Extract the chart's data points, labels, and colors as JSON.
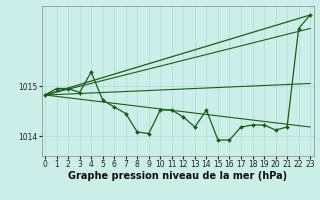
{
  "bg_color": "#cceee8",
  "grid_color": "#aaddcc",
  "line_color": "#1a5c1a",
  "xlabel": "Graphe pression niveau de la mer (hPa)",
  "xlabel_fontsize": 7,
  "ylim": [
    1013.6,
    1016.6
  ],
  "xlim": [
    -0.3,
    23.3
  ],
  "yticks": [
    1014,
    1015
  ],
  "xticks": [
    0,
    1,
    2,
    3,
    4,
    5,
    6,
    7,
    8,
    9,
    10,
    11,
    12,
    13,
    14,
    15,
    16,
    17,
    18,
    19,
    20,
    21,
    22,
    23
  ],
  "tick_fontsize": 5.5,
  "series_main": {
    "x": [
      0,
      1,
      2,
      3,
      4,
      5,
      6,
      7,
      8,
      9,
      10,
      11,
      12,
      13,
      14,
      15,
      16,
      17,
      18,
      19,
      20,
      21,
      22,
      23
    ],
    "y": [
      1014.82,
      1014.95,
      1014.95,
      1014.87,
      1015.28,
      1014.72,
      1014.58,
      1014.45,
      1014.08,
      1014.05,
      1014.52,
      1014.52,
      1014.38,
      1014.18,
      1014.52,
      1013.92,
      1013.92,
      1014.18,
      1014.22,
      1014.22,
      1014.12,
      1014.18,
      1016.15,
      1016.42
    ],
    "marker": "D",
    "markersize": 2.0,
    "linewidth": 0.9
  },
  "envelope_lines": [
    {
      "x": [
        0,
        23
      ],
      "y": [
        1014.82,
        1016.42
      ],
      "linewidth": 0.9
    },
    {
      "x": [
        0,
        23
      ],
      "y": [
        1014.82,
        1016.15
      ],
      "linewidth": 0.8
    },
    {
      "x": [
        0,
        23
      ],
      "y": [
        1014.82,
        1015.05
      ],
      "linewidth": 0.8
    },
    {
      "x": [
        0,
        23
      ],
      "y": [
        1014.82,
        1014.18
      ],
      "linewidth": 0.8
    }
  ]
}
